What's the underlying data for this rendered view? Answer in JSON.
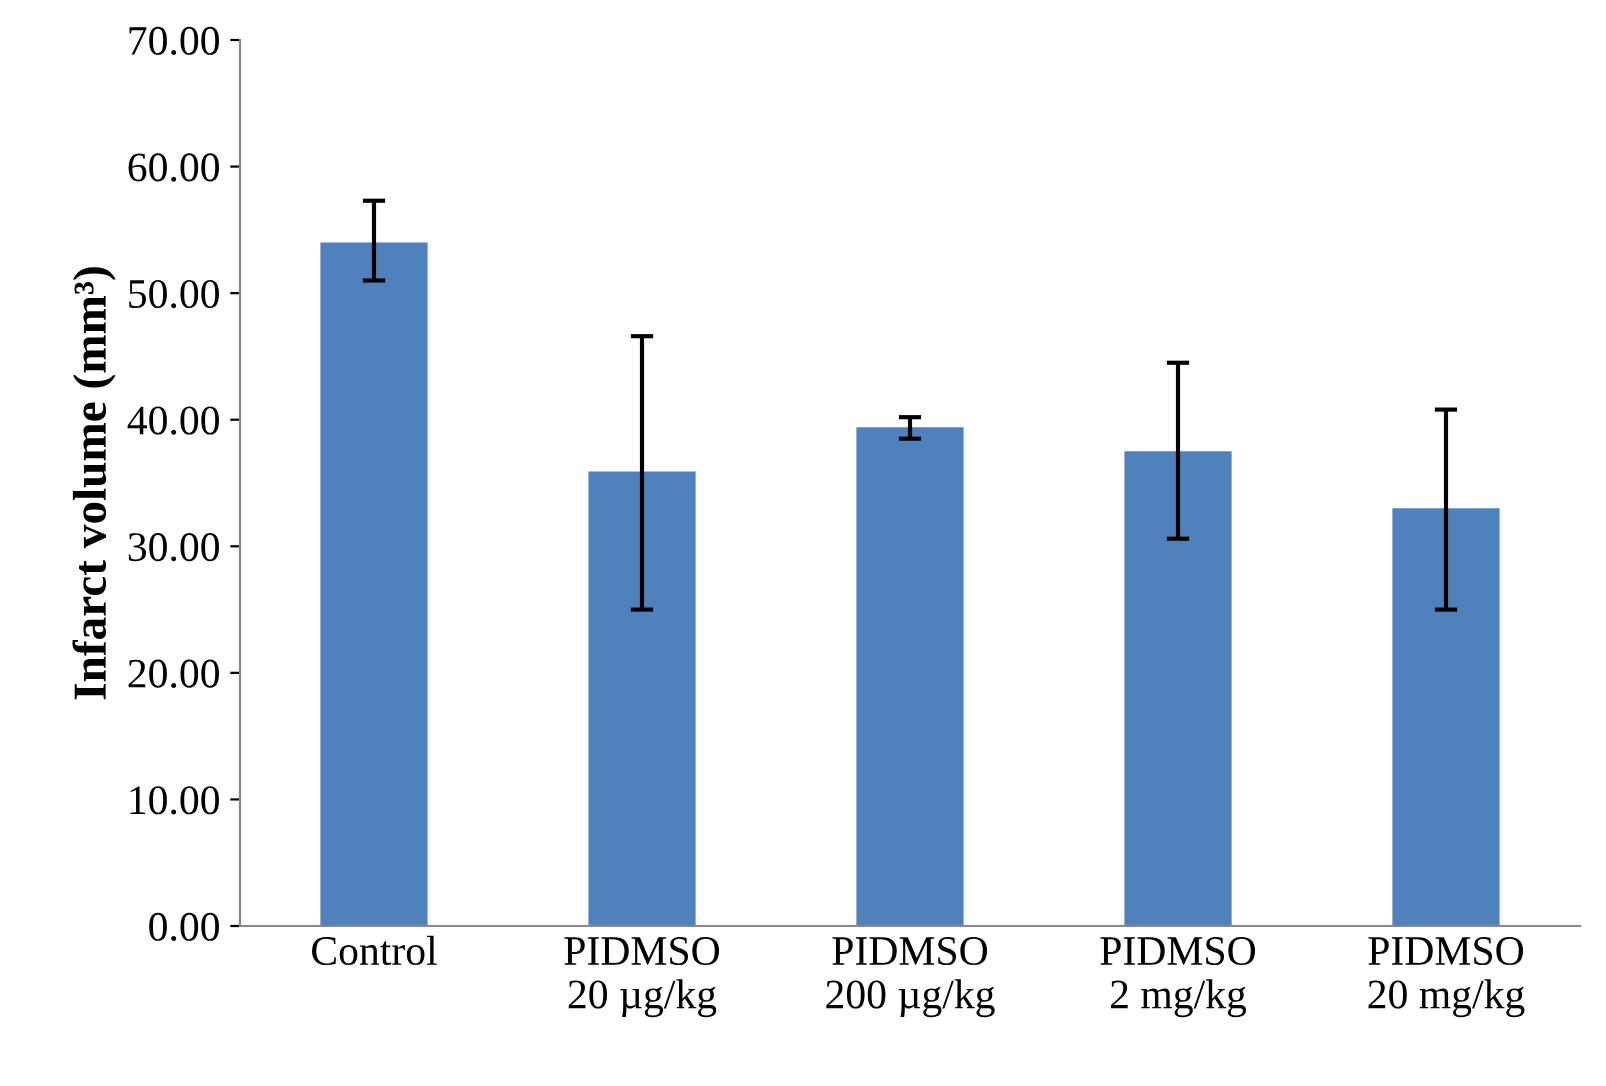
{
  "chart_data": {
    "type": "bar",
    "ylabel": "Infarct volume (mm³)",
    "categories": [
      "Control",
      "PIDMSO\n20 µg/kg",
      "PIDMSO\n200 µg/kg",
      "PIDMSO\n2 mg/kg",
      "PIDMSO\n20 mg/kg"
    ],
    "values": [
      54.0,
      35.9,
      39.4,
      37.5,
      33.0
    ],
    "errors": [
      [
        51.0,
        57.3
      ],
      [
        25.0,
        46.6
      ],
      [
        38.5,
        40.2
      ],
      [
        30.6,
        44.5
      ],
      [
        25.0,
        40.8
      ]
    ],
    "color": "#4f81bd",
    "ylim": [
      0,
      70
    ],
    "yticks": [
      {
        "value": 0,
        "label": "0.00"
      },
      {
        "value": 10,
        "label": "10.00"
      },
      {
        "value": 20,
        "label": "20.00"
      },
      {
        "value": 30,
        "label": "30.00"
      },
      {
        "value": 40,
        "label": "40.00"
      },
      {
        "value": 50,
        "label": "50.00"
      },
      {
        "value": 60,
        "label": "60.00"
      },
      {
        "value": 70,
        "label": "70.00"
      }
    ],
    "grid": false
  }
}
